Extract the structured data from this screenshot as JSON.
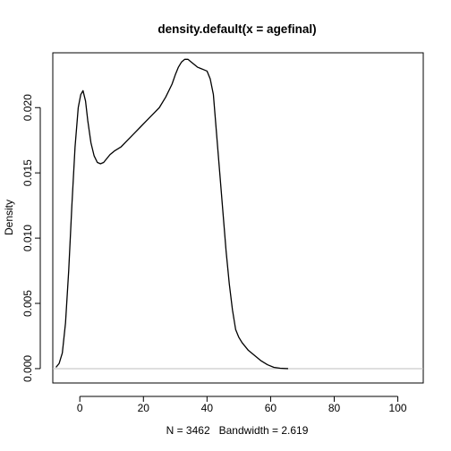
{
  "chart_data": {
    "type": "line",
    "title": "density.default(x = agefinal)",
    "xlabel": "N = 3462   Bandwidth = 2.619",
    "ylabel": "Density",
    "xlim": [
      -8.5,
      108
    ],
    "ylim": [
      -0.0011,
      0.0242
    ],
    "xticks": [
      0,
      20,
      40,
      60,
      80,
      100
    ],
    "yticks": [
      0.0,
      0.005,
      0.01,
      0.015,
      0.02
    ],
    "ytick_labels": [
      "0.000",
      "0.005",
      "0.010",
      "0.015",
      "0.020"
    ],
    "baseline": 0,
    "grid": false,
    "series": [
      {
        "color": "#000000",
        "x": [
          -7.5,
          -6.5,
          -5.5,
          -4.5,
          -3.5,
          -2.5,
          -1.5,
          -0.5,
          0.3,
          1.0,
          1.8,
          2.5,
          3.5,
          4.5,
          5.5,
          6.5,
          7.5,
          8.5,
          9.5,
          11,
          13,
          15,
          17,
          19,
          21,
          23,
          25,
          27,
          29,
          30,
          31,
          32,
          33,
          34,
          35,
          36,
          37,
          38,
          39,
          40,
          41,
          42,
          43,
          44,
          45,
          46,
          47,
          48,
          49,
          50,
          51,
          52,
          53,
          55,
          57,
          59,
          61,
          63,
          64.5,
          65.5
        ],
        "y": [
          0.0001,
          0.0004,
          0.0012,
          0.0035,
          0.0075,
          0.0125,
          0.017,
          0.02,
          0.021,
          0.0213,
          0.0205,
          0.019,
          0.0173,
          0.0163,
          0.0158,
          0.0157,
          0.0158,
          0.0161,
          0.0164,
          0.0167,
          0.017,
          0.0175,
          0.018,
          0.0185,
          0.019,
          0.0195,
          0.02,
          0.0208,
          0.0218,
          0.0225,
          0.0231,
          0.0235,
          0.0237,
          0.0237,
          0.0235,
          0.0233,
          0.0231,
          0.023,
          0.0229,
          0.0228,
          0.0222,
          0.021,
          0.018,
          0.015,
          0.012,
          0.009,
          0.0065,
          0.0045,
          0.003,
          0.0024,
          0.002,
          0.0017,
          0.0014,
          0.001,
          0.0006,
          0.0003,
          0.0001,
          3e-05,
          1e-05,
          0.0
        ]
      }
    ]
  }
}
